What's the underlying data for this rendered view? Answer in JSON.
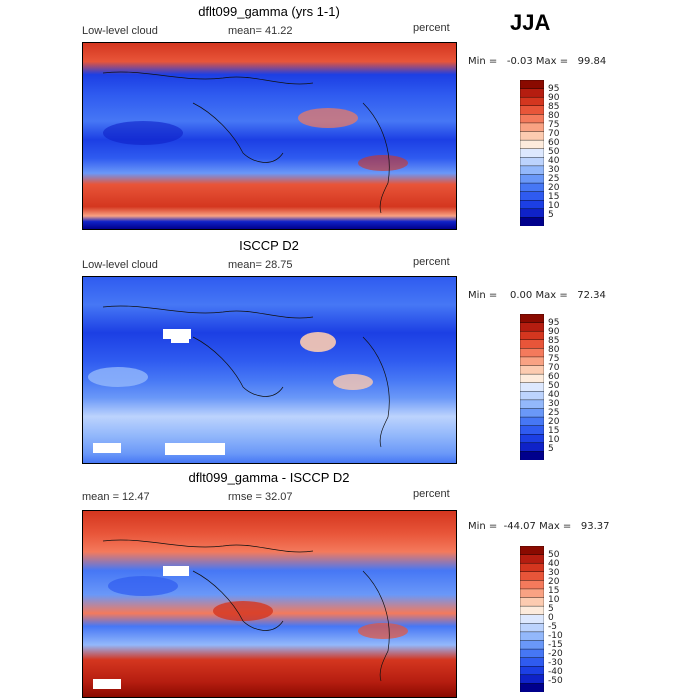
{
  "season": "JJA",
  "colors": {
    "abs_scale": [
      "#00008c",
      "#0f22c8",
      "#1c3fe4",
      "#2f5bf0",
      "#4677f5",
      "#6a98f8",
      "#93b8fb",
      "#bcd3fd",
      "#dde8fe",
      "#fdebdc",
      "#fccbb0",
      "#f9a283",
      "#f47a5c",
      "#e85539",
      "#d4361f",
      "#b51d10",
      "#8a0a00"
    ],
    "diff_scale": [
      "#00008c",
      "#0f22c8",
      "#1c3fe4",
      "#2f5bf0",
      "#4677f5",
      "#6a98f8",
      "#93b8fb",
      "#bcd3fd",
      "#dde8fe",
      "#fdebdc",
      "#fccbb0",
      "#f9a283",
      "#f47a5c",
      "#e85539",
      "#d4361f",
      "#b51d10",
      "#8a0a00"
    ]
  },
  "panels": [
    {
      "title": "dflt099_gamma (yrs 1-1)",
      "left_label": "Low-level cloud",
      "mid_label": "mean=  41.22",
      "right_label": "percent",
      "minmax": "Min =   -0.03 Max =   99.84",
      "colorbar_labels": [
        "95",
        "90",
        "85",
        "80",
        "75",
        "70",
        "60",
        "50",
        "40",
        "30",
        "25",
        "20",
        "15",
        "10",
        "5"
      ]
    },
    {
      "title": "ISCCP D2",
      "left_label": "Low-level cloud",
      "mid_label": "mean=  28.75",
      "right_label": "percent",
      "minmax": "Min =    0.00 Max =   72.34",
      "colorbar_labels": [
        "95",
        "90",
        "85",
        "80",
        "75",
        "70",
        "60",
        "50",
        "40",
        "30",
        "25",
        "20",
        "15",
        "10",
        "5"
      ]
    },
    {
      "title": "dflt099_gamma - ISCCP D2",
      "left_label": "mean =   12.47",
      "mid_label": "rmse =   32.07",
      "right_label": "percent",
      "minmax": "Min =  -44.07 Max =   93.37",
      "colorbar_labels": [
        "50",
        "40",
        "30",
        "20",
        "15",
        "10",
        "5",
        "0",
        "-5",
        "-10",
        "-15",
        "-20",
        "-30",
        "-40",
        "-50"
      ]
    }
  ],
  "chart_data": [
    {
      "type": "heatmap",
      "title": "dflt099_gamma (yrs 1-1)",
      "field": "Low-level cloud",
      "units": "percent",
      "mean": 41.22,
      "min": -0.03,
      "max": 99.84,
      "contour_levels": [
        5,
        10,
        15,
        20,
        25,
        30,
        40,
        50,
        60,
        70,
        75,
        80,
        85,
        90,
        95
      ]
    },
    {
      "type": "heatmap",
      "title": "ISCCP D2",
      "field": "Low-level cloud",
      "units": "percent",
      "mean": 28.75,
      "min": 0.0,
      "max": 72.34,
      "contour_levels": [
        5,
        10,
        15,
        20,
        25,
        30,
        40,
        50,
        60,
        70,
        75,
        80,
        85,
        90,
        95
      ]
    },
    {
      "type": "heatmap",
      "title": "dflt099_gamma - ISCCP D2",
      "units": "percent",
      "mean": 12.47,
      "rmse": 32.07,
      "min": -44.07,
      "max": 93.37,
      "contour_levels": [
        -50,
        -40,
        -30,
        -20,
        -15,
        -10,
        -5,
        0,
        5,
        10,
        15,
        20,
        30,
        40,
        50
      ]
    }
  ]
}
